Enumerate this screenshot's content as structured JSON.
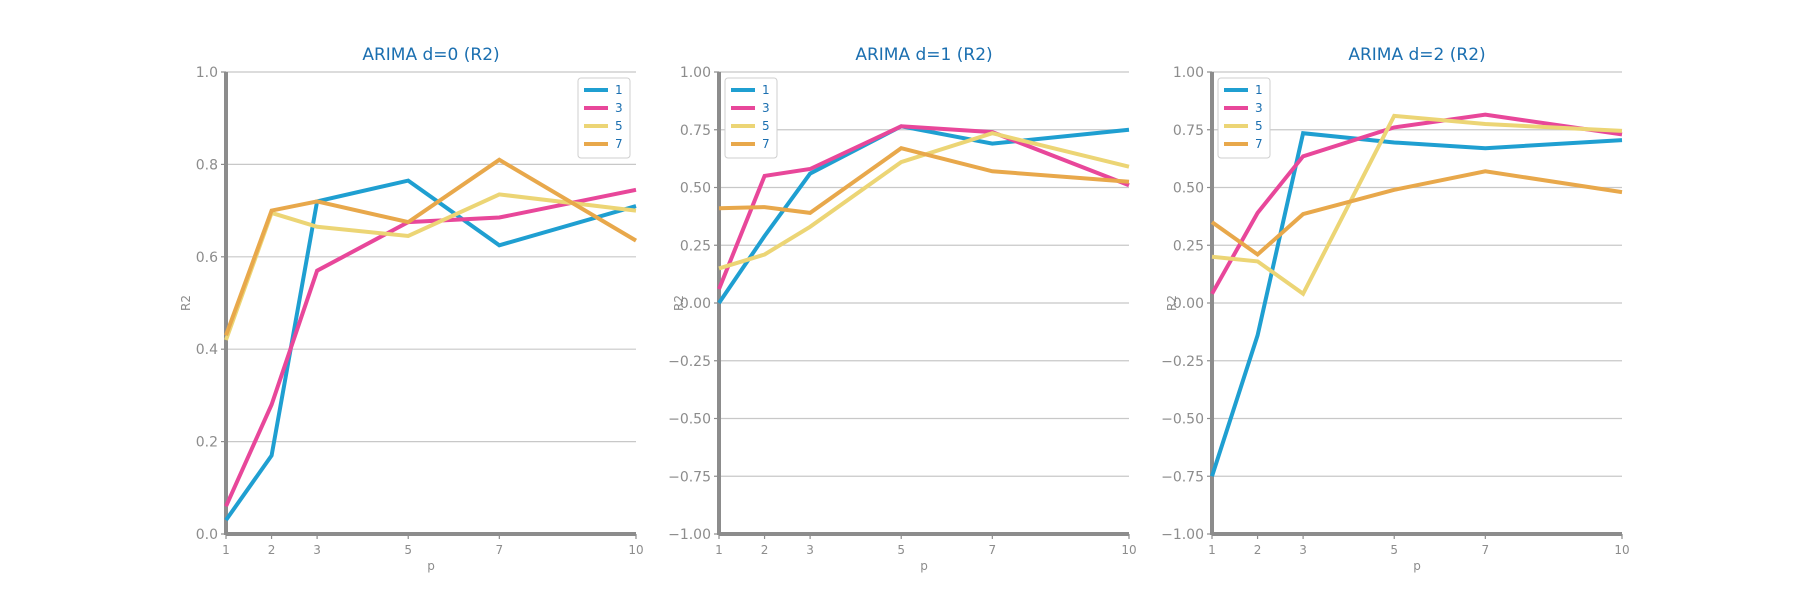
{
  "colors": {
    "series": [
      "#1f9fd1",
      "#e8479a",
      "#ecd575",
      "#e8a84b"
    ],
    "title": "#1b6fb0",
    "axis_spine": "#8c8c8c",
    "tick_text": "#8c8c8c",
    "grid": "#c8c8c8",
    "legend_text": "#1b6fb0"
  },
  "chart_data": [
    {
      "type": "line",
      "title": "ARIMA d=0 (R2)",
      "xlabel": "p",
      "ylabel": "R2",
      "x": [
        1,
        2,
        3,
        5,
        7,
        10
      ],
      "xticks": [
        "1",
        "2",
        "3",
        "5",
        "7",
        "10"
      ],
      "ylim": [
        0,
        1
      ],
      "yticks": [
        "0.0",
        "0.2",
        "0.4",
        "0.6",
        "0.8",
        "1.0"
      ],
      "ytick_values": [
        0,
        0.2,
        0.4,
        0.6,
        0.8,
        1.0
      ],
      "grid": "horizontal",
      "legend_position": "top-right",
      "series": [
        {
          "name": "1",
          "values": [
            0.03,
            0.17,
            0.72,
            0.765,
            0.625,
            0.71
          ]
        },
        {
          "name": "3",
          "values": [
            0.06,
            0.28,
            0.57,
            0.675,
            0.685,
            0.745
          ]
        },
        {
          "name": "5",
          "values": [
            0.42,
            0.695,
            0.665,
            0.645,
            0.735,
            0.7
          ]
        },
        {
          "name": "7",
          "values": [
            0.43,
            0.7,
            0.72,
            0.675,
            0.81,
            0.635
          ]
        }
      ]
    },
    {
      "type": "line",
      "title": "ARIMA d=1 (R2)",
      "xlabel": "p",
      "ylabel": "R2",
      "x": [
        1,
        2,
        3,
        5,
        7,
        10
      ],
      "xticks": [
        "1",
        "2",
        "3",
        "5",
        "7",
        "10"
      ],
      "ylim": [
        -1,
        1
      ],
      "yticks": [
        "−1.00",
        "−0.75",
        "−0.50",
        "−0.25",
        "0.00",
        "0.25",
        "0.50",
        "0.75",
        "1.00"
      ],
      "ytick_values": [
        -1,
        -0.75,
        -0.5,
        -0.25,
        0,
        0.25,
        0.5,
        0.75,
        1
      ],
      "grid": "horizontal",
      "legend_position": "top-left",
      "series": [
        {
          "name": "1",
          "values": [
            0.0,
            0.29,
            0.56,
            0.765,
            0.69,
            0.75
          ]
        },
        {
          "name": "3",
          "values": [
            0.06,
            0.55,
            0.58,
            0.765,
            0.74,
            0.51
          ]
        },
        {
          "name": "5",
          "values": [
            0.15,
            0.21,
            0.33,
            0.61,
            0.735,
            0.59
          ]
        },
        {
          "name": "7",
          "values": [
            0.41,
            0.415,
            0.39,
            0.67,
            0.57,
            0.525
          ]
        }
      ]
    },
    {
      "type": "line",
      "title": "ARIMA d=2 (R2)",
      "xlabel": "p",
      "ylabel": "R2",
      "x": [
        1,
        2,
        3,
        5,
        7,
        10
      ],
      "xticks": [
        "1",
        "2",
        "3",
        "5",
        "7",
        "10"
      ],
      "ylim": [
        -1,
        1
      ],
      "yticks": [
        "−1.00",
        "−0.75",
        "−0.50",
        "−0.25",
        "0.00",
        "0.25",
        "0.50",
        "0.75",
        "1.00"
      ],
      "ytick_values": [
        -1,
        -0.75,
        -0.5,
        -0.25,
        0,
        0.25,
        0.5,
        0.75,
        1
      ],
      "grid": "horizontal",
      "legend_position": "top-left",
      "series": [
        {
          "name": "1",
          "values": [
            -0.75,
            -0.14,
            0.735,
            0.695,
            0.67,
            0.705
          ]
        },
        {
          "name": "3",
          "values": [
            0.04,
            0.39,
            0.635,
            0.76,
            0.815,
            0.73
          ]
        },
        {
          "name": "5",
          "values": [
            0.2,
            0.18,
            0.04,
            0.81,
            0.775,
            0.745
          ]
        },
        {
          "name": "7",
          "values": [
            0.35,
            0.21,
            0.385,
            0.49,
            0.57,
            0.48
          ]
        }
      ]
    }
  ]
}
